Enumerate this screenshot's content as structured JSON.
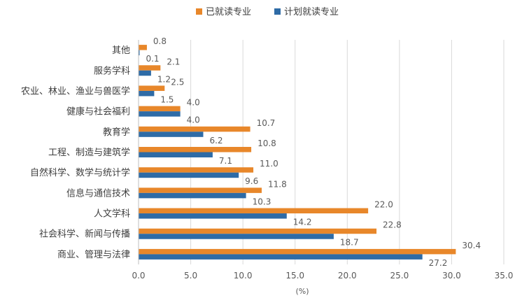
{
  "colors": {
    "series_completed": "#E8872A",
    "series_planned": "#2E6BA6",
    "gridline": "#D9D9D9",
    "axis_line": "#BFBFBF"
  },
  "chart_data": {
    "type": "bar",
    "orientation": "horizontal",
    "categories": [
      "其他",
      "服务学科",
      "农业、林业、渔业与兽医学",
      "健康与社会福利",
      "教育学",
      "工程、制造与建筑学",
      "自然科学、数学与统计学",
      "信息与通信技术",
      "人文学科",
      "社会科学、新闻与传播",
      "商业、管理与法律"
    ],
    "series": [
      {
        "name": "已就读专业",
        "color": "#E8872A",
        "values": [
          0.8,
          2.1,
          2.5,
          4.0,
          10.7,
          10.8,
          11.0,
          11.8,
          22.0,
          22.8,
          30.4
        ]
      },
      {
        "name": "计划就读专业",
        "color": "#2E6BA6",
        "values": [
          0.1,
          1.2,
          1.5,
          4.0,
          6.2,
          7.1,
          9.6,
          10.3,
          14.2,
          18.7,
          27.2
        ]
      }
    ],
    "value_labels": {
      "completed": [
        "0.8",
        "2.1",
        "2.5",
        "4.0",
        "10.7",
        "10.8",
        "11.0",
        "11.8",
        "22.0",
        "22.8",
        "30.4"
      ],
      "planned": [
        "0.1",
        "1.2",
        "1.5",
        "4.0",
        "6.2",
        "7.1",
        "9.6",
        "10.3",
        "14.2",
        "18.7",
        "27.2"
      ]
    },
    "xlim": [
      0,
      35
    ],
    "xticks": [
      0,
      5,
      10,
      15,
      20,
      25,
      30,
      35
    ],
    "xtick_labels": [
      "0.0",
      "5.0",
      "10.0",
      "15.0",
      "20.0",
      "25.0",
      "30.0",
      "35.0"
    ],
    "xlabel": "(%)",
    "ylabel": "",
    "title": "",
    "grid": "vertical",
    "legend_position": "top-center"
  }
}
